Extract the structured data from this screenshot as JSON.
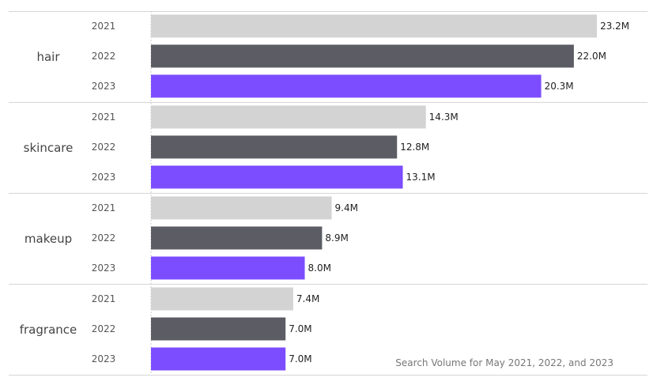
{
  "chart_data": {
    "type": "bar",
    "orientation": "horizontal",
    "categories": [
      "hair",
      "skincare",
      "makeup",
      "fragrance"
    ],
    "series": [
      {
        "name": "2021",
        "values": [
          23.2,
          14.3,
          9.4,
          7.4
        ],
        "labels": [
          "23.2M",
          "14.3M",
          "9.4M",
          "7.4M"
        ],
        "color": "#d3d3d3"
      },
      {
        "name": "2022",
        "values": [
          22.0,
          12.8,
          8.9,
          7.0
        ],
        "labels": [
          "22.0M",
          "12.8M",
          "8.9M",
          "7.0M"
        ],
        "color": "#5c5d64"
      },
      {
        "name": "2023",
        "values": [
          20.3,
          13.1,
          8.0,
          7.0
        ],
        "labels": [
          "20.3M",
          "13.1M",
          "8.0M",
          "7.0M"
        ],
        "color": "#7c4dff"
      }
    ],
    "annotation": "Search Volume for May 2021, 2022, and 2023",
    "xlim": [
      0,
      25.5
    ],
    "grid": false,
    "legend": "none"
  }
}
